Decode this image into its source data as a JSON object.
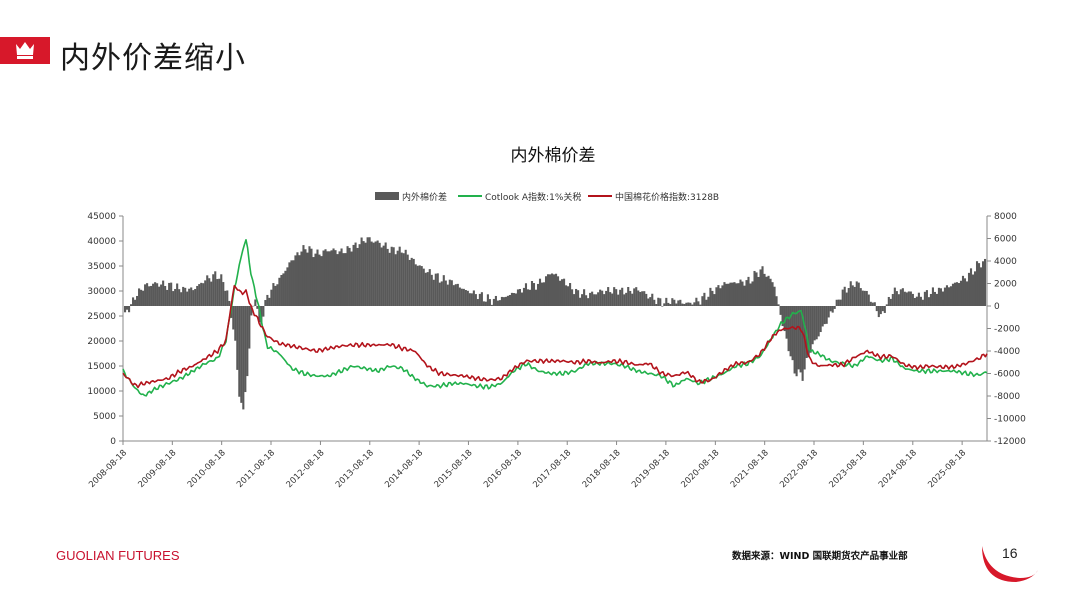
{
  "header": {
    "title": "内外价差缩小",
    "icon": "crown-icon"
  },
  "colors": {
    "accent": "#d7182a",
    "bars": "#595959",
    "cotlook": "#22b14c",
    "china": "#b3131b"
  },
  "chart_data": {
    "type": "bar+line",
    "title": "内外棉价差",
    "legend": [
      "内外棉价差",
      "Cotlook A指数:1%关税",
      "中国棉花价格指数:3128B"
    ],
    "legend_position": "top",
    "y_left": {
      "ticks": [
        "0",
        "5000",
        "10000",
        "15000",
        "20000",
        "25000",
        "30000",
        "35000",
        "40000",
        "45000"
      ],
      "range": [
        0,
        45000
      ]
    },
    "y_right": {
      "ticks": [
        "8000",
        "6000",
        "4000",
        "2000",
        "0",
        "-2000",
        "-4000",
        "-6000",
        "-8000",
        "-10000",
        "-12000"
      ],
      "range": [
        -12000,
        8000
      ]
    },
    "x_ticks": [
      "2008-08-18",
      "2009-08-18",
      "2010-08-18",
      "2011-08-18",
      "2012-08-18",
      "2013-08-18",
      "2014-08-18",
      "2015-08-18",
      "2016-08-18",
      "2017-08-18",
      "2018-08-18",
      "2019-08-18",
      "2020-08-18",
      "2021-08-18",
      "2022-08-18",
      "2023-08-18",
      "2024-08-18",
      "2025-08-18"
    ],
    "x_range": [
      "2008-08-18",
      "2026-02-18"
    ],
    "grid": false,
    "series": [
      {
        "name": "内外棉价差",
        "axis": "right",
        "type": "bar",
        "points": [
          [
            "2008-08-18",
            -1000
          ],
          [
            "2008-11-18",
            1000
          ],
          [
            "2009-01-18",
            1800
          ],
          [
            "2009-04-18",
            2000
          ],
          [
            "2009-07-18",
            1800
          ],
          [
            "2009-10-18",
            1500
          ],
          [
            "2010-01-18",
            1500
          ],
          [
            "2010-04-18",
            2400
          ],
          [
            "2010-07-18",
            2800
          ],
          [
            "2010-09-18",
            1500
          ],
          [
            "2010-11-18",
            -3000
          ],
          [
            "2010-12-18",
            -8000
          ],
          [
            "2011-01-18",
            -9200
          ],
          [
            "2011-02-18",
            -6000
          ],
          [
            "2011-03-18",
            -1000
          ],
          [
            "2011-04-18",
            1000
          ],
          [
            "2011-05-18",
            -2000
          ],
          [
            "2011-07-18",
            1000
          ],
          [
            "2011-10-18",
            2500
          ],
          [
            "2012-01-18",
            4200
          ],
          [
            "2012-04-18",
            5200
          ],
          [
            "2012-07-18",
            4600
          ],
          [
            "2012-10-18",
            5000
          ],
          [
            "2013-01-18",
            4800
          ],
          [
            "2013-04-18",
            5300
          ],
          [
            "2013-07-18",
            6000
          ],
          [
            "2013-10-18",
            5600
          ],
          [
            "2014-01-18",
            5000
          ],
          [
            "2014-04-18",
            4900
          ],
          [
            "2014-07-18",
            3800
          ],
          [
            "2014-10-18",
            3000
          ],
          [
            "2015-01-18",
            2400
          ],
          [
            "2015-04-18",
            2100
          ],
          [
            "2015-07-18",
            1400
          ],
          [
            "2015-10-18",
            1000
          ],
          [
            "2016-01-18",
            500
          ],
          [
            "2016-04-18",
            700
          ],
          [
            "2016-07-18",
            1200
          ],
          [
            "2016-10-18",
            1700
          ],
          [
            "2017-01-18",
            2000
          ],
          [
            "2017-04-18",
            3000
          ],
          [
            "2017-07-18",
            2200
          ],
          [
            "2017-10-18",
            1200
          ],
          [
            "2018-01-18",
            1000
          ],
          [
            "2018-04-18",
            1300
          ],
          [
            "2018-07-18",
            1400
          ],
          [
            "2018-10-18",
            1300
          ],
          [
            "2019-01-18",
            1500
          ],
          [
            "2019-04-18",
            800
          ],
          [
            "2019-07-18",
            300
          ],
          [
            "2019-10-18",
            500
          ],
          [
            "2020-01-18",
            200
          ],
          [
            "2020-04-18",
            500
          ],
          [
            "2020-07-18",
            1300
          ],
          [
            "2020-10-18",
            2000
          ],
          [
            "2021-01-18",
            2100
          ],
          [
            "2021-04-18",
            2200
          ],
          [
            "2021-07-18",
            3300
          ],
          [
            "2021-10-18",
            2000
          ],
          [
            "2021-12-18",
            -1500
          ],
          [
            "2022-03-18",
            -5800
          ],
          [
            "2022-05-18",
            -6200
          ],
          [
            "2022-07-18",
            -3800
          ],
          [
            "2022-09-18",
            -2500
          ],
          [
            "2022-12-18",
            -600
          ],
          [
            "2023-03-18",
            1400
          ],
          [
            "2023-06-18",
            2100
          ],
          [
            "2023-09-18",
            1000
          ],
          [
            "2023-12-18",
            -1000
          ],
          [
            "2024-03-18",
            1300
          ],
          [
            "2024-06-18",
            1400
          ],
          [
            "2024-09-18",
            800
          ],
          [
            "2024-12-18",
            1200
          ],
          [
            "2025-03-18",
            1500
          ],
          [
            "2025-06-18",
            2000
          ],
          [
            "2025-09-18",
            2600
          ],
          [
            "2025-12-18",
            3800
          ],
          [
            "2026-02-18",
            4000
          ]
        ]
      },
      {
        "name": "Cotlook A指数:1%关税",
        "axis": "left",
        "type": "line",
        "points": [
          [
            "2008-08-18",
            14000
          ],
          [
            "2008-11-18",
            10500
          ],
          [
            "2009-01-18",
            9000
          ],
          [
            "2009-04-18",
            10500
          ],
          [
            "2009-07-18",
            11500
          ],
          [
            "2009-10-18",
            12500
          ],
          [
            "2010-01-18",
            14000
          ],
          [
            "2010-04-18",
            15500
          ],
          [
            "2010-07-18",
            16500
          ],
          [
            "2010-09-18",
            20000
          ],
          [
            "2010-11-18",
            30000
          ],
          [
            "2011-01-18",
            38000
          ],
          [
            "2011-02-18",
            40500
          ],
          [
            "2011-03-18",
            34000
          ],
          [
            "2011-05-18",
            27000
          ],
          [
            "2011-07-18",
            19000
          ],
          [
            "2011-10-18",
            17500
          ],
          [
            "2012-01-18",
            14500
          ],
          [
            "2012-04-18",
            13500
          ],
          [
            "2012-07-18",
            13000
          ],
          [
            "2012-10-18",
            13000
          ],
          [
            "2013-01-18",
            14000
          ],
          [
            "2013-04-18",
            15000
          ],
          [
            "2013-07-18",
            14500
          ],
          [
            "2013-10-18",
            14000
          ],
          [
            "2014-01-18",
            15000
          ],
          [
            "2014-04-18",
            14500
          ],
          [
            "2014-07-18",
            12500
          ],
          [
            "2014-10-18",
            11000
          ],
          [
            "2015-01-18",
            11000
          ],
          [
            "2015-04-18",
            11500
          ],
          [
            "2015-07-18",
            11500
          ],
          [
            "2015-10-18",
            11000
          ],
          [
            "2016-01-18",
            10800
          ],
          [
            "2016-04-18",
            11500
          ],
          [
            "2016-07-18",
            14000
          ],
          [
            "2016-10-18",
            15500
          ],
          [
            "2017-01-18",
            14000
          ],
          [
            "2017-04-18",
            13500
          ],
          [
            "2017-07-18",
            13500
          ],
          [
            "2017-10-18",
            14000
          ],
          [
            "2018-01-18",
            15500
          ],
          [
            "2018-04-18",
            15500
          ],
          [
            "2018-07-18",
            15500
          ],
          [
            "2018-10-18",
            15000
          ],
          [
            "2019-01-18",
            14000
          ],
          [
            "2019-04-18",
            13500
          ],
          [
            "2019-07-18",
            13000
          ],
          [
            "2019-10-18",
            11000
          ],
          [
            "2020-01-18",
            12500
          ],
          [
            "2020-04-18",
            11500
          ],
          [
            "2020-07-18",
            12500
          ],
          [
            "2020-10-18",
            13500
          ],
          [
            "2021-01-18",
            15000
          ],
          [
            "2021-04-18",
            15500
          ],
          [
            "2021-07-18",
            17000
          ],
          [
            "2021-10-18",
            21000
          ],
          [
            "2021-12-18",
            23500
          ],
          [
            "2022-03-18",
            25500
          ],
          [
            "2022-05-18",
            26000
          ],
          [
            "2022-07-18",
            18000
          ],
          [
            "2022-09-18",
            17500
          ],
          [
            "2022-12-18",
            16000
          ],
          [
            "2023-03-18",
            15500
          ],
          [
            "2023-06-18",
            15000
          ],
          [
            "2023-09-18",
            17000
          ],
          [
            "2023-12-18",
            16000
          ],
          [
            "2024-03-18",
            16500
          ],
          [
            "2024-06-18",
            14500
          ],
          [
            "2024-09-18",
            14000
          ],
          [
            "2024-12-18",
            14000
          ],
          [
            "2025-03-18",
            14000
          ],
          [
            "2025-06-18",
            14000
          ],
          [
            "2025-09-18",
            13500
          ],
          [
            "2025-12-18",
            13200
          ],
          [
            "2026-02-18",
            13800
          ]
        ]
      },
      {
        "name": "中国棉花价格指数:3128B",
        "axis": "left",
        "type": "line",
        "points": [
          [
            "2008-08-18",
            13500
          ],
          [
            "2008-11-18",
            11000
          ],
          [
            "2009-01-18",
            11500
          ],
          [
            "2009-04-18",
            12000
          ],
          [
            "2009-07-18",
            12500
          ],
          [
            "2009-10-18",
            14000
          ],
          [
            "2010-01-18",
            15000
          ],
          [
            "2010-04-18",
            16500
          ],
          [
            "2010-07-18",
            18000
          ],
          [
            "2010-09-18",
            20000
          ],
          [
            "2010-11-18",
            31000
          ],
          [
            "2011-01-18",
            29500
          ],
          [
            "2011-02-18",
            30000
          ],
          [
            "2011-03-18",
            27000
          ],
          [
            "2011-05-18",
            24000
          ],
          [
            "2011-07-18",
            21000
          ],
          [
            "2011-10-18",
            19500
          ],
          [
            "2012-01-18",
            19000
          ],
          [
            "2012-04-18",
            18500
          ],
          [
            "2012-07-18",
            18000
          ],
          [
            "2012-10-18",
            18500
          ],
          [
            "2013-01-18",
            19000
          ],
          [
            "2013-04-18",
            19200
          ],
          [
            "2013-07-18",
            19200
          ],
          [
            "2013-10-18",
            19200
          ],
          [
            "2014-01-18",
            19300
          ],
          [
            "2014-04-18",
            18500
          ],
          [
            "2014-07-18",
            18000
          ],
          [
            "2014-10-18",
            15000
          ],
          [
            "2015-01-18",
            13500
          ],
          [
            "2015-04-18",
            13200
          ],
          [
            "2015-07-18",
            13000
          ],
          [
            "2015-10-18",
            12500
          ],
          [
            "2016-01-18",
            12200
          ],
          [
            "2016-04-18",
            12500
          ],
          [
            "2016-07-18",
            14500
          ],
          [
            "2016-10-18",
            16000
          ],
          [
            "2017-01-18",
            16000
          ],
          [
            "2017-04-18",
            16000
          ],
          [
            "2017-07-18",
            16000
          ],
          [
            "2017-10-18",
            15700
          ],
          [
            "2018-01-18",
            16000
          ],
          [
            "2018-04-18",
            15600
          ],
          [
            "2018-07-18",
            16000
          ],
          [
            "2018-10-18",
            15800
          ],
          [
            "2019-01-18",
            15200
          ],
          [
            "2019-04-18",
            15500
          ],
          [
            "2019-07-18",
            13500
          ],
          [
            "2019-10-18",
            13000
          ],
          [
            "2020-01-18",
            13800
          ],
          [
            "2020-04-18",
            11800
          ],
          [
            "2020-07-18",
            12200
          ],
          [
            "2020-10-18",
            14000
          ],
          [
            "2021-01-18",
            15500
          ],
          [
            "2021-04-18",
            15700
          ],
          [
            "2021-07-18",
            17500
          ],
          [
            "2021-10-18",
            21000
          ],
          [
            "2021-12-18",
            22300
          ],
          [
            "2022-03-18",
            22700
          ],
          [
            "2022-05-18",
            22500
          ],
          [
            "2022-07-18",
            16200
          ],
          [
            "2022-09-18",
            15000
          ],
          [
            "2022-12-18",
            15200
          ],
          [
            "2023-03-18",
            15200
          ],
          [
            "2023-06-18",
            16800
          ],
          [
            "2023-09-18",
            18000
          ],
          [
            "2023-12-18",
            16800
          ],
          [
            "2024-03-18",
            17000
          ],
          [
            "2024-06-18",
            15200
          ],
          [
            "2024-09-18",
            14700
          ],
          [
            "2024-12-18",
            15000
          ],
          [
            "2025-03-18",
            14800
          ],
          [
            "2025-06-18",
            14800
          ],
          [
            "2025-09-18",
            15500
          ],
          [
            "2025-12-18",
            16500
          ],
          [
            "2026-02-18",
            17500
          ]
        ]
      }
    ]
  },
  "footer": {
    "brand_bold": "GUOLIAN",
    "brand_light": " FUTURES",
    "source": "数据来源：WIND 国联期货农产品事业部",
    "page": "16"
  }
}
